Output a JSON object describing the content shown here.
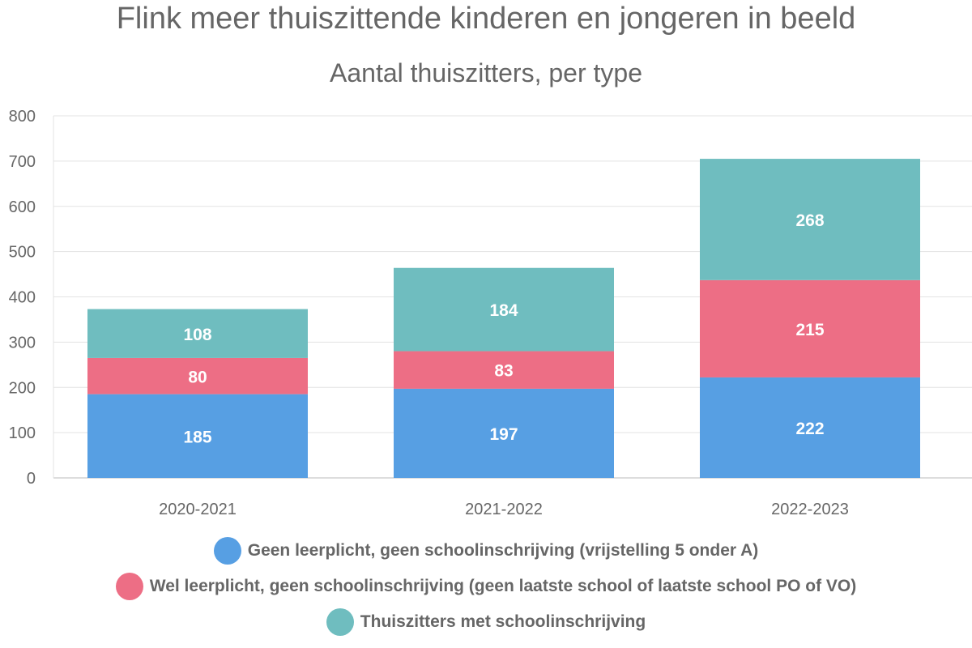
{
  "chart_data": {
    "type": "bar",
    "stacked": true,
    "title": "Flink meer thuiszittende kinderen en jongeren in beeld",
    "subtitle": "Aantal thuiszitters, per type",
    "categories": [
      "2020-2021",
      "2021-2022",
      "2022-2023"
    ],
    "series": [
      {
        "name": "Geen leerplicht, geen schoolinschrijving (vrijstelling 5 onder A)",
        "color": "#579fe3",
        "values": [
          185,
          197,
          222
        ]
      },
      {
        "name": "Wel leerplicht, geen schoolinschrijving (geen laatste school of laatste school PO of VO)",
        "color": "#ed6e85",
        "values": [
          80,
          83,
          215
        ]
      },
      {
        "name": "Thuiszitters met schoolinschrijving",
        "color": "#6fbdbf",
        "values": [
          108,
          184,
          268
        ]
      }
    ],
    "ylim": [
      0,
      800
    ],
    "yticks": [
      0,
      100,
      200,
      300,
      400,
      500,
      600,
      700,
      800
    ],
    "grid": true,
    "legend_position": "bottom"
  }
}
